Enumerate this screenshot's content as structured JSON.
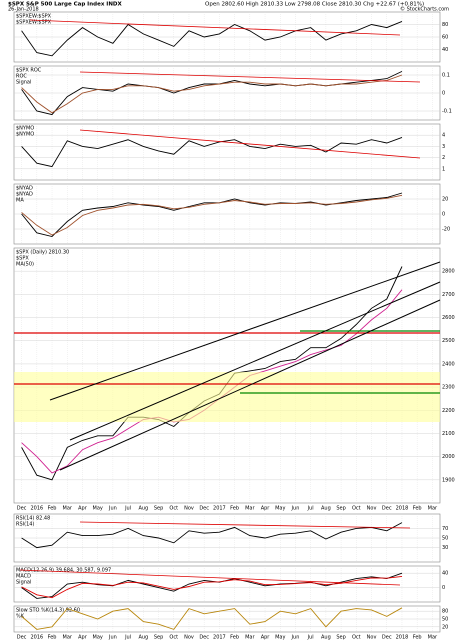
{
  "header": {
    "symbol": "$SPX S&P 500 Large Cap Index INDX",
    "date": "26-Jan-2018",
    "quote": "Open 2802.60 High 2810.33 Low 2798.08 Close 2810.30 Chg +22.67 (+0.81%)",
    "source": "© StockCharts.com"
  },
  "chart_data": [
    {
      "type": "line",
      "title": "$SPXEW:$SPX",
      "ylim": [
        20,
        100
      ],
      "yticks": [
        40,
        60,
        80
      ],
      "series": [
        {
          "name": "$SPXEW:$SPX",
          "color": "#000000",
          "values": [
            70,
            35,
            30,
            55,
            75,
            60,
            50,
            80,
            65,
            55,
            45,
            70,
            60,
            65,
            80,
            70,
            55,
            60,
            70,
            75,
            55,
            65,
            70,
            80,
            75,
            85,
            null,
            null
          ]
        }
      ]
    },
    {
      "type": "line",
      "title": "$SPX ROC",
      "ylim": [
        -0.15,
        0.15
      ],
      "yticks": [
        -0.1,
        0,
        0.1
      ],
      "series": [
        {
          "name": "ROC",
          "color": "#000000",
          "values": [
            0.02,
            -0.1,
            -0.12,
            -0.02,
            0.03,
            0.02,
            0.01,
            0.05,
            0.04,
            0.03,
            0.0,
            0.03,
            0.05,
            0.05,
            0.07,
            0.05,
            0.04,
            0.05,
            0.04,
            0.05,
            0.04,
            0.05,
            0.06,
            0.07,
            0.08,
            0.12,
            null,
            null
          ]
        },
        {
          "name": "Signal",
          "color": "#a0522d",
          "values": [
            0.03,
            -0.05,
            -0.11,
            -0.06,
            0.0,
            0.02,
            0.02,
            0.04,
            0.04,
            0.03,
            0.01,
            0.02,
            0.04,
            0.05,
            0.06,
            0.06,
            0.05,
            0.05,
            0.04,
            0.05,
            0.04,
            0.05,
            0.05,
            0.06,
            0.07,
            0.1,
            null,
            null
          ]
        }
      ]
    },
    {
      "type": "line",
      "title": "$NYMO",
      "ylim": [
        0,
        5
      ],
      "yticks": [
        1,
        2,
        3,
        4
      ],
      "series": [
        {
          "name": "$NYMO",
          "color": "#000000",
          "values": [
            3,
            1.5,
            1.2,
            3.5,
            3,
            2.8,
            3.2,
            3.6,
            3,
            2.6,
            2.3,
            3.5,
            3,
            3.4,
            3.6,
            3,
            2.8,
            3.2,
            3,
            3.1,
            2.5,
            3.3,
            3.2,
            3.6,
            3.3,
            3.8,
            null,
            null
          ]
        }
      ]
    },
    {
      "type": "line",
      "title": "$NYAD",
      "ylim": [
        -40,
        40
      ],
      "yticks": [
        -20,
        0,
        20
      ],
      "series": [
        {
          "name": "$NYAD",
          "color": "#000000",
          "values": [
            0,
            -25,
            -30,
            -10,
            5,
            8,
            10,
            15,
            12,
            10,
            5,
            10,
            15,
            15,
            20,
            15,
            12,
            15,
            14,
            16,
            12,
            15,
            18,
            20,
            22,
            28,
            null,
            null
          ]
        },
        {
          "name": "MA",
          "color": "#a0522d",
          "values": [
            2,
            -15,
            -28,
            -18,
            -2,
            5,
            8,
            12,
            13,
            11,
            7,
            9,
            13,
            15,
            18,
            16,
            13,
            14,
            14,
            15,
            13,
            14,
            16,
            19,
            21,
            25,
            null,
            null
          ]
        }
      ]
    },
    {
      "type": "line",
      "title": "$SPX (Daily) 2810.30",
      "log": false,
      "ylim": [
        1800,
        2900
      ],
      "yticks": [
        1900,
        2000,
        2100,
        2200,
        2300,
        2400,
        2500,
        2600,
        2700,
        2800
      ],
      "categories": [
        "Dec",
        "2016",
        "Feb",
        "Mar",
        "Apr",
        "May",
        "Jun",
        "Jul",
        "Aug",
        "Sep",
        "Oct",
        "Nov",
        "Dec",
        "2017",
        "Feb",
        "Mar",
        "Apr",
        "May",
        "Jun",
        "Jul",
        "Aug",
        "Sep",
        "Oct",
        "Nov",
        "Dec",
        "2018",
        "Feb",
        "Mar"
      ],
      "series": [
        {
          "name": "$SPX",
          "color": "#000000",
          "values": [
            2040,
            1920,
            1900,
            2040,
            2070,
            2090,
            2090,
            2170,
            2170,
            2160,
            2130,
            2190,
            2240,
            2270,
            2360,
            2370,
            2380,
            2410,
            2420,
            2470,
            2470,
            2510,
            2570,
            2640,
            2680,
            2820,
            null,
            null
          ]
        },
        {
          "name": "MA(50)",
          "color": "#d02090",
          "values": [
            2060,
            2000,
            1930,
            1960,
            2030,
            2060,
            2080,
            2120,
            2160,
            2170,
            2150,
            2160,
            2200,
            2250,
            2300,
            2350,
            2370,
            2390,
            2410,
            2440,
            2460,
            2480,
            2530,
            2590,
            2640,
            2720,
            null,
            null
          ]
        }
      ]
    },
    {
      "type": "line",
      "title": "RSI(14) 82.48",
      "ylim": [
        0,
        100
      ],
      "yticks": [
        30,
        50,
        70
      ],
      "series": [
        {
          "name": "RSI(14)",
          "color": "#000000",
          "values": [
            50,
            30,
            35,
            62,
            55,
            55,
            58,
            70,
            55,
            50,
            40,
            65,
            60,
            62,
            72,
            55,
            50,
            58,
            60,
            65,
            48,
            62,
            70,
            72,
            65,
            82,
            null,
            null
          ]
        }
      ]
    },
    {
      "type": "line",
      "title": "MACD(12,26,9) 39.684, 30.587, 9.097",
      "ylim": [
        -40,
        60
      ],
      "yticks": [
        0,
        40
      ],
      "series": [
        {
          "name": "MACD",
          "color": "#000000",
          "values": [
            0,
            -30,
            -25,
            10,
            15,
            8,
            5,
            20,
            10,
            0,
            -10,
            10,
            20,
            15,
            25,
            15,
            5,
            10,
            12,
            15,
            5,
            15,
            25,
            30,
            25,
            40,
            null,
            null
          ]
        },
        {
          "name": "Signal",
          "color": "#e00000",
          "values": [
            2,
            -20,
            -28,
            -5,
            12,
            10,
            6,
            15,
            13,
            4,
            -5,
            3,
            15,
            16,
            22,
            18,
            8,
            9,
            11,
            14,
            8,
            12,
            20,
            27,
            26,
            31,
            null,
            null
          ]
        }
      ]
    },
    {
      "type": "line",
      "title": "Slow STO %K(14,3) 92.60",
      "ylim": [
        0,
        100
      ],
      "yticks": [
        20,
        50,
        80
      ],
      "categories": [
        "Dec",
        "2016",
        "Feb",
        "Mar",
        "Apr",
        "May",
        "Jun",
        "Jul",
        "Aug",
        "Sep",
        "Oct",
        "Nov",
        "Dec",
        "2017",
        "Feb",
        "Mar",
        "Apr",
        "May",
        "Jun",
        "Jul",
        "Aug",
        "Sep",
        "Oct",
        "Nov",
        "Dec",
        "2018",
        "Feb",
        "Mar"
      ],
      "series": [
        {
          "name": "%K",
          "color": "#b8860b",
          "values": [
            60,
            10,
            20,
            90,
            70,
            50,
            80,
            90,
            40,
            30,
            10,
            90,
            70,
            80,
            90,
            30,
            40,
            80,
            70,
            90,
            20,
            80,
            90,
            85,
            60,
            93,
            null,
            null
          ]
        }
      ]
    }
  ]
}
